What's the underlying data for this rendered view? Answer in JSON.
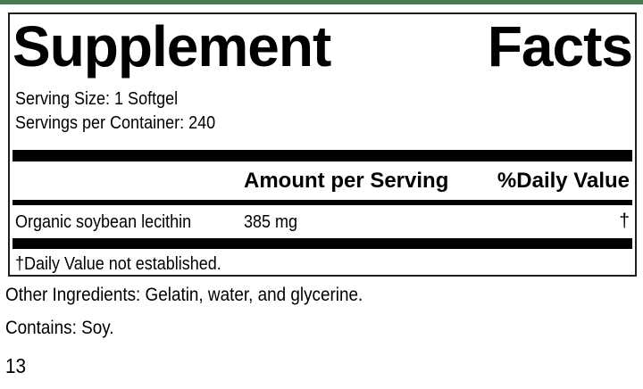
{
  "label": {
    "title": {
      "word1": "Supplement",
      "word2": "Facts"
    },
    "serving_size": "Serving Size: 1 Softgel",
    "servings_per_container": "Servings per Container: 240",
    "columns": {
      "amount": "Amount per Serving",
      "daily_value": "%Daily Value"
    },
    "rows": [
      {
        "name": "Organic soybean lecithin",
        "amount": "385 mg",
        "daily_value": "†"
      }
    ],
    "footnote": "†Daily Value not established."
  },
  "footer": {
    "other_ingredients": "Other Ingredients: Gelatin, water, and glycerine.",
    "contains": "Contains: Soy.",
    "page_number": "13"
  },
  "colors": {
    "accent_bar": "#4b7a55",
    "panel_border": "#1f1f1f",
    "rule": "#000000"
  }
}
